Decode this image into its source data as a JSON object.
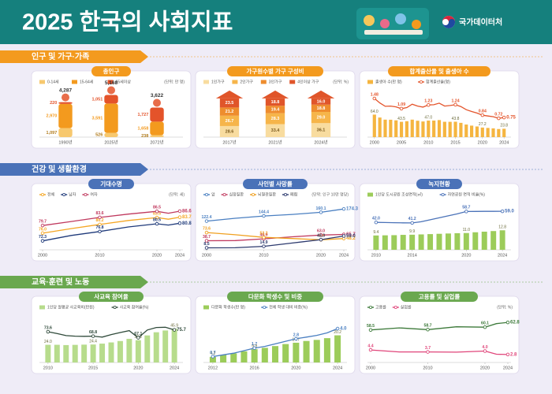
{
  "header": {
    "title": "2025 한국의 사회지표",
    "logo": "국가데이터처"
  },
  "sections": [
    {
      "title": "인구 및 가구·가족",
      "color": "#f39a1e"
    },
    {
      "title": "건강 및 생활환경",
      "color": "#4a72b8"
    },
    {
      "title": "교육·훈련 및 노동",
      "color": "#6aa84f"
    }
  ],
  "chart_data": [
    {
      "type": "stacked-bar",
      "shape": "person",
      "title": "총인구",
      "unit": "(단위: 만 명)",
      "categories": [
        "1990년",
        "2025년",
        "2072년"
      ],
      "ylim": [
        0,
        5600
      ],
      "totals": [
        4287,
        5168,
        3622
      ],
      "total_labels": [
        "4,287",
        "5,168",
        "3,622"
      ],
      "series": [
        {
          "name": "0-14세",
          "color": "#f7c86e",
          "values": [
            1097,
            526,
            238
          ],
          "value_labels": [
            "1,097",
            "526",
            "238"
          ]
        },
        {
          "name": "15-64세",
          "color": "#f39a1e",
          "values": [
            2970,
            3591,
            1658
          ],
          "value_labels": [
            "2,970",
            "3,591",
            "1,658"
          ]
        },
        {
          "name": "65세이상",
          "color": "#e4532a",
          "values": [
            220,
            1051,
            1727
          ],
          "value_labels": [
            "220",
            "1,051",
            "1,727"
          ]
        }
      ]
    },
    {
      "type": "stacked-bar",
      "shape": "house",
      "title": "가구원수별 가구 구성비",
      "unit": "(단위: %)",
      "categories": [
        "2017년",
        "2021년",
        "2024년"
      ],
      "ylim": [
        0,
        118
      ],
      "series": [
        {
          "name": "1인가구",
          "color": "#f8dc9f",
          "values": [
            28.6,
            33.4,
            36.1
          ],
          "value_labels": [
            "28.6",
            "33.4",
            "36.1"
          ]
        },
        {
          "name": "2인가구",
          "color": "#f6b54a",
          "values": [
            26.7,
            28.3,
            29.0
          ],
          "value_labels": [
            "26.7",
            "28.3",
            "29.0"
          ]
        },
        {
          "name": "3인가구",
          "color": "#ee8d2e",
          "values": [
            21.2,
            19.4,
            18.8
          ],
          "value_labels": [
            "21.2",
            "19.4",
            "18.8"
          ]
        },
        {
          "name": "4인이상 가구",
          "color": "#e0552a",
          "values": [
            23.5,
            18.8,
            16.0
          ],
          "value_labels": [
            "23.5",
            "18.8",
            "16.0"
          ]
        }
      ]
    },
    {
      "type": "bar-line",
      "title": "합계출산율 및 출생아 수",
      "x": [
        2000,
        2001,
        2002,
        2003,
        2004,
        2005,
        2006,
        2007,
        2008,
        2009,
        2010,
        2011,
        2012,
        2013,
        2014,
        2015,
        2016,
        2017,
        2018,
        2019,
        2020,
        2021,
        2022,
        2023,
        2024
      ],
      "xlim": [
        1999.3,
        2024.7
      ],
      "xticks": [
        2000,
        2005,
        2010,
        2015,
        2020,
        2024
      ],
      "ylim": [
        0,
        130
      ],
      "y2lim": [
        0,
        1.75
      ],
      "series": [
        {
          "name": "출생아 수(만 명)",
          "mark": "bar",
          "color": "#f5b540",
          "values": [
            64.0,
            55.7,
            49.7,
            49.5,
            47.7,
            43.5,
            45.2,
            49.7,
            46.6,
            44.5,
            47.0,
            47.1,
            48.5,
            43.6,
            43.5,
            43.8,
            40.6,
            35.8,
            32.7,
            30.3,
            27.2,
            26.1,
            24.9,
            23.0,
            23.8
          ],
          "value_labels": [
            "64.0",
            null,
            null,
            null,
            null,
            "43.5",
            null,
            null,
            null,
            null,
            "47.0",
            null,
            null,
            null,
            null,
            "43.8",
            null,
            null,
            null,
            null,
            "27.2",
            null,
            null,
            null,
            "23.8"
          ]
        },
        {
          "name": "합계출산율(명)",
          "mark": "line",
          "axis": "y2",
          "color": "#e4532a",
          "values": [
            1.48,
            1.31,
            1.18,
            1.19,
            1.16,
            1.09,
            1.13,
            1.26,
            1.19,
            1.15,
            1.23,
            1.24,
            1.3,
            1.19,
            1.21,
            1.24,
            1.17,
            1.05,
            0.98,
            0.92,
            0.84,
            0.81,
            0.78,
            0.72,
            0.75
          ],
          "value_labels": [
            "1.48",
            null,
            null,
            null,
            null,
            "1.09",
            null,
            null,
            null,
            null,
            "1.23",
            null,
            null,
            null,
            null,
            "1.24",
            null,
            null,
            null,
            null,
            "0.84",
            null,
            null,
            "0.72",
            "0.75"
          ]
        }
      ]
    },
    {
      "type": "line",
      "title": "기대수명",
      "unit": "(단위: 세)",
      "x": [
        2000,
        2005,
        2010,
        2015,
        2020,
        2022,
        2024
      ],
      "xlim": [
        2000,
        2024
      ],
      "xticks": [
        2000,
        2010,
        2020,
        2024
      ],
      "ylim": [
        68,
        90
      ],
      "series": [
        {
          "name": "전체",
          "color": "#f5a623",
          "values": [
            76.0,
            78.2,
            80.2,
            82.1,
            83.5,
            82.7,
            83.7
          ],
          "value_labels": [
            "76.0",
            null,
            "80.2",
            null,
            "83.5",
            null,
            "83.7"
          ]
        },
        {
          "name": "남자",
          "color": "#1f3a7a",
          "values": [
            72.3,
            74.9,
            76.8,
            79.0,
            80.5,
            79.9,
            80.8
          ],
          "value_labels": [
            "72.3",
            null,
            "76.8",
            null,
            "80.5",
            null,
            "80.8"
          ]
        },
        {
          "name": "여자",
          "color": "#c0395e",
          "values": [
            79.7,
            81.6,
            83.6,
            85.2,
            86.5,
            85.6,
            86.6
          ],
          "value_labels": [
            "79.7",
            null,
            "83.6",
            null,
            "86.5",
            null,
            "86.6"
          ]
        }
      ]
    },
    {
      "type": "line",
      "title": "사인별 사망률",
      "unit": "(단위: 인구 10만 명당)",
      "x": [
        2000,
        2005,
        2010,
        2015,
        2020,
        2024
      ],
      "xlim": [
        2000,
        2024
      ],
      "xticks": [
        2000,
        2010,
        2020,
        2024
      ],
      "ylim": [
        0,
        195
      ],
      "series": [
        {
          "name": "암",
          "color": "#4a7fc1",
          "values": [
            122.4,
            134.5,
            144.4,
            150.8,
            160.1,
            174.3
          ],
          "value_labels": [
            "122.4",
            null,
            "144.4",
            null,
            "160.1",
            "174.3"
          ]
        },
        {
          "name": "심장질환",
          "color": "#c0395e",
          "values": [
            38.7,
            39.3,
            46.9,
            55.6,
            63.0,
            65.7
          ],
          "value_labels": [
            "38.7",
            null,
            "46.9",
            null,
            "63.0",
            "65.7"
          ]
        },
        {
          "name": "뇌혈관질환",
          "color": "#f0a020",
          "values": [
            73.6,
            64.1,
            53.2,
            48.0,
            42.6,
            48.2
          ],
          "value_labels": [
            "73.6",
            null,
            "53.2",
            null,
            "42.6",
            "48.2"
          ]
        },
        {
          "name": "폐렴",
          "color": "#2d3a6e",
          "values": [
            8.5,
            8.6,
            14.9,
            28.9,
            43.3,
            59.0
          ],
          "value_labels": [
            "8.5",
            null,
            "14.9",
            null,
            "43.3",
            "59.0"
          ]
        }
      ]
    },
    {
      "type": "bar-line",
      "title": "녹지현황",
      "x": [
        2010,
        2011,
        2012,
        2013,
        2014,
        2015,
        2016,
        2017,
        2018,
        2019,
        2020,
        2021,
        2022,
        2023,
        2024
      ],
      "xlim": [
        2009.4,
        2024.6
      ],
      "xticks": [
        2010,
        2014,
        2020,
        2024
      ],
      "ylim": [
        0,
        30
      ],
      "y2lim": [
        0,
        70
      ],
      "series": [
        {
          "name": "1인당 도시공원 조성면적(㎡)",
          "mark": "bar",
          "color": "#9ccc5a",
          "values": [
            9.4,
            9.5,
            9.6,
            9.8,
            9.9,
            10.1,
            10.3,
            10.5,
            10.7,
            10.9,
            11.0,
            11.5,
            11.9,
            12.3,
            12.8
          ],
          "value_labels": [
            "9.4",
            null,
            null,
            null,
            "9.9",
            null,
            null,
            null,
            null,
            null,
            "11.0",
            null,
            null,
            null,
            "12.8"
          ]
        },
        {
          "name": "자연공원 면적 비율(%)",
          "mark": "line",
          "axis": "y2",
          "color": "#4a72b8",
          "values": [
            42.0,
            41.8,
            41.5,
            41.3,
            41.2,
            43.0,
            46.0,
            49.0,
            52.0,
            55.0,
            58.7,
            58.8,
            58.9,
            58.9,
            59.0
          ],
          "value_labels": [
            "42.0",
            null,
            null,
            null,
            "41.2",
            null,
            null,
            null,
            null,
            null,
            "58.7",
            null,
            null,
            null,
            "59.0"
          ]
        }
      ]
    },
    {
      "type": "bar-line",
      "title": "사교육 참여율",
      "x": [
        2010,
        2011,
        2012,
        2013,
        2014,
        2015,
        2016,
        2017,
        2018,
        2019,
        2020,
        2021,
        2022,
        2023,
        2024
      ],
      "xlim": [
        2009.4,
        2024.6
      ],
      "xticks": [
        2010,
        2015,
        2020,
        2024
      ],
      "ylim": [
        0,
        62
      ],
      "y2lim": [
        40,
        90
      ],
      "series": [
        {
          "name": "1인당 월평균 사교육비(만원)",
          "mark": "bar",
          "color": "#b7dc8c",
          "values": [
            24.0,
            24.0,
            23.6,
            23.9,
            24.2,
            24.4,
            25.6,
            27.2,
            29.1,
            32.1,
            30.2,
            36.7,
            41.0,
            43.4,
            45.9
          ],
          "value_labels": [
            "24.0",
            null,
            null,
            null,
            null,
            "24.4",
            null,
            null,
            null,
            null,
            "30.2",
            null,
            null,
            null,
            "45.9"
          ]
        },
        {
          "name": "사교육 참여율(%)",
          "mark": "line",
          "axis": "y2",
          "color": "#2f4a3a",
          "values": [
            73.6,
            71.7,
            69.4,
            68.8,
            68.6,
            68.8,
            67.8,
            70.5,
            72.8,
            74.8,
            67.1,
            75.5,
            78.3,
            78.5,
            75.7
          ],
          "value_labels": [
            "73.6",
            null,
            null,
            null,
            null,
            "68.8",
            null,
            null,
            null,
            null,
            "67.1",
            null,
            null,
            null,
            "75.7"
          ]
        }
      ]
    },
    {
      "type": "bar-line",
      "title": "다문화 학생수 및 비중",
      "x": [
        2012,
        2013,
        2014,
        2015,
        2016,
        2017,
        2018,
        2019,
        2020,
        2021,
        2022,
        2023,
        2024
      ],
      "xlim": [
        2011.4,
        2024.6
      ],
      "xticks": [
        2012,
        2016,
        2020,
        2024
      ],
      "ylim": [
        0,
        34
      ],
      "y2lim": [
        0,
        5.4
      ],
      "series": [
        {
          "name": "다문화 학생수(만 명)",
          "mark": "bar",
          "color": "#9ccc5a",
          "values": [
            4.2,
            5.6,
            6.8,
            8.3,
            9.9,
            10.9,
            12.2,
            13.7,
            14.7,
            16.0,
            16.8,
            18.1,
            20.2
          ],
          "value_labels": [
            "4.2",
            null,
            null,
            null,
            "9.9",
            null,
            null,
            null,
            "14.7",
            null,
            null,
            null,
            "20.2"
          ]
        },
        {
          "name": "전체 학생 대비 비중(%)",
          "mark": "line",
          "axis": "y2",
          "color": "#4a7fc1",
          "values": [
            0.7,
            0.9,
            1.1,
            1.4,
            1.7,
            1.9,
            2.2,
            2.5,
            2.8,
            3.0,
            3.2,
            3.5,
            4.0
          ],
          "value_labels": [
            "0.7",
            null,
            null,
            null,
            "1.7",
            null,
            null,
            null,
            "2.8",
            null,
            null,
            null,
            "4.0"
          ]
        }
      ]
    },
    {
      "type": "line",
      "title": "고용률 및 실업률",
      "unit": "(단위: %)",
      "x": [
        2000,
        2005,
        2010,
        2015,
        2020,
        2022,
        2024
      ],
      "xlim": [
        2000,
        2024
      ],
      "xticks": [
        2000,
        2010,
        2020,
        2024
      ],
      "ylim": [
        40,
        66
      ],
      "y2lim": [
        0,
        16
      ],
      "series": [
        {
          "name": "고용률",
          "color": "#3d7a3a",
          "values": [
            58.5,
            59.7,
            58.7,
            60.3,
            60.1,
            62.1,
            62.8
          ],
          "value_labels": [
            "58.5",
            null,
            "58.7",
            null,
            "60.1",
            null,
            "62.8"
          ]
        },
        {
          "name": "실업률",
          "axis": "y2",
          "color": "#e0457a",
          "values": [
            4.4,
            3.7,
            3.7,
            3.6,
            4.0,
            2.9,
            2.8
          ],
          "value_labels": [
            "4.4",
            null,
            "3.7",
            null,
            "4.0",
            null,
            "2.8"
          ]
        }
      ]
    }
  ]
}
